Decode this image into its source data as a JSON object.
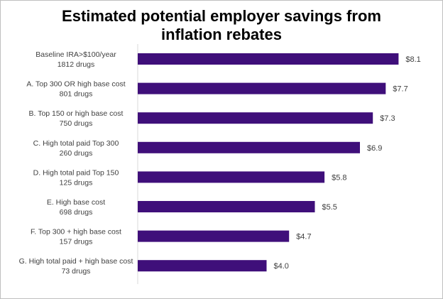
{
  "chart_data": {
    "type": "bar",
    "orientation": "horizontal",
    "title": "Estimated potential employer savings from inflation rebates",
    "title_lines": [
      "Estimated potential employer savings from",
      "inflation rebates"
    ],
    "categories": [
      [
        "Baseline IRA>$100/year",
        "1812 drugs"
      ],
      [
        "A. Top 300 OR high base cost",
        "801 drugs"
      ],
      [
        "B. Top 150 or high base cost",
        "750 drugs"
      ],
      [
        "C. High total paid Top 300",
        "260 drugs"
      ],
      [
        "D. High total paid  Top 150",
        "125 drugs"
      ],
      [
        "E. High base cost",
        "698 drugs"
      ],
      [
        "F. Top 300 + high base cost",
        "157 drugs"
      ],
      [
        "G. High total paid + high base cost",
        "73 drugs"
      ]
    ],
    "values": [
      8.1,
      7.7,
      7.3,
      6.9,
      5.8,
      5.5,
      4.7,
      4.0
    ],
    "value_labels": [
      "$8.1",
      "$7.7",
      "$7.3",
      "$6.9",
      "$5.8",
      "$5.5",
      "$4.7",
      "$4.0"
    ],
    "xlim": [
      0,
      8.95
    ],
    "xlabel": "",
    "ylabel": "",
    "grid": false,
    "legend": "none",
    "colors": {
      "bar": "#3f0f7a",
      "axis": "#d9d9d9",
      "text": "#404040"
    }
  }
}
